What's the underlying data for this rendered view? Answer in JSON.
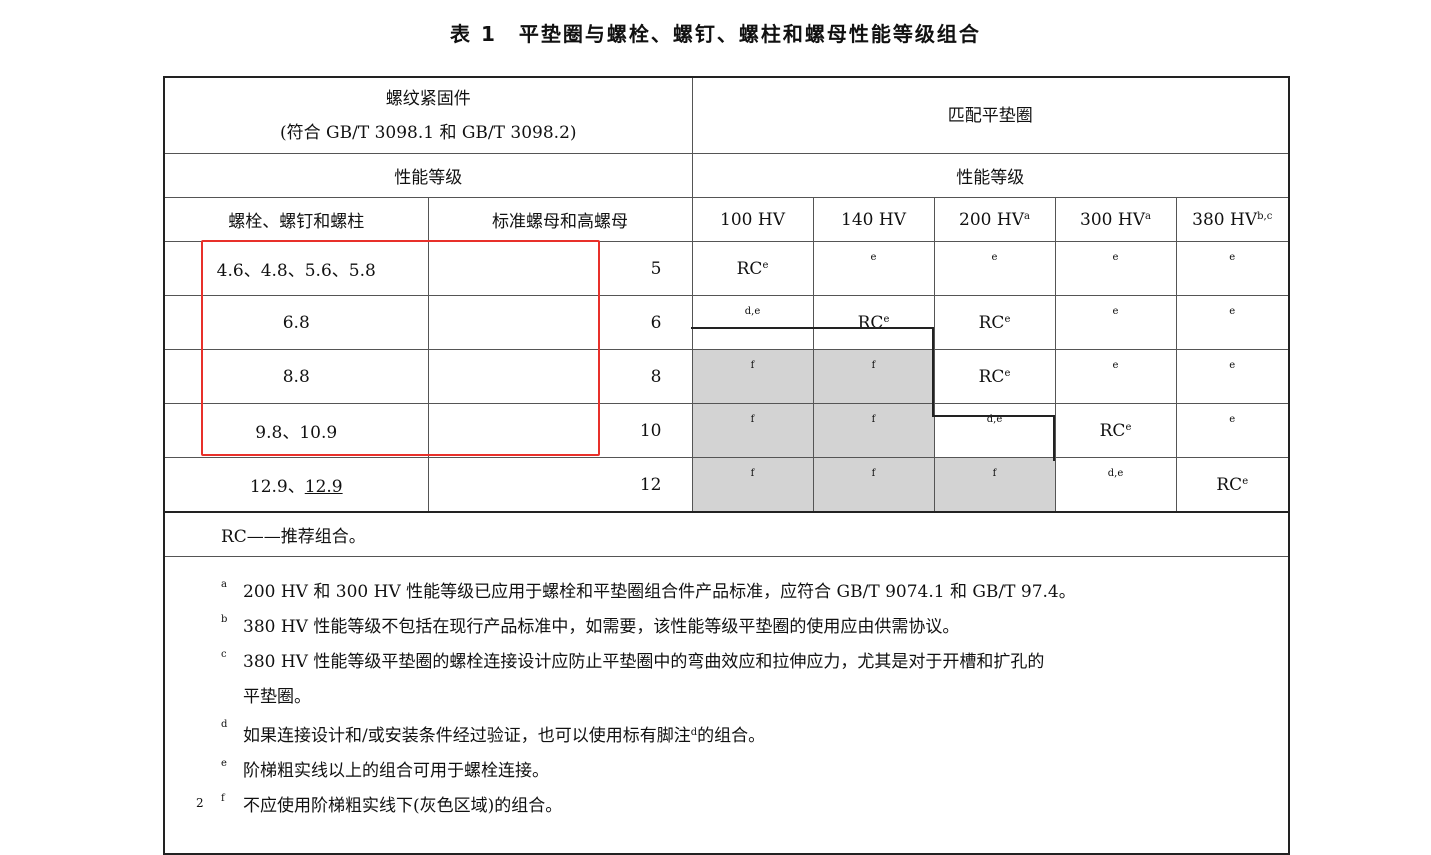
{
  "title": "表 1　平垫圈与螺栓、螺钉、螺柱和螺母性能等级组合",
  "header": {
    "fasteners": "螺纹紧固件",
    "fasteners_std": "(符合 GB/T 3098.1 和 GB/T 3098.2)",
    "washers": "匹配平垫圈",
    "grade_left": "性能等级",
    "grade_right": "性能等级",
    "bolts": "螺栓、螺钉和螺柱",
    "nuts": "标准螺母和高螺母",
    "cols": [
      {
        "label": "100 HV",
        "sup": ""
      },
      {
        "label": "140 HV",
        "sup": ""
      },
      {
        "label": "200 HV",
        "sup": "a"
      },
      {
        "label": "300 HV",
        "sup": "a"
      },
      {
        "label": "380 HV",
        "sup": "b,c"
      }
    ]
  },
  "rows": [
    {
      "bolt": "4.6、4.8、5.6、5.8",
      "nut": "5",
      "cells": [
        {
          "rc": "RC",
          "sup": "e"
        },
        {
          "rc": "",
          "sup": "e"
        },
        {
          "rc": "",
          "sup": "e"
        },
        {
          "rc": "",
          "sup": "e"
        },
        {
          "rc": "",
          "sup": "e"
        }
      ]
    },
    {
      "bolt": "6.8",
      "nut": "6",
      "cells": [
        {
          "rc": "",
          "sup": "d,e"
        },
        {
          "rc": "RC",
          "sup": "e"
        },
        {
          "rc": "RC",
          "sup": "e"
        },
        {
          "rc": "",
          "sup": "e"
        },
        {
          "rc": "",
          "sup": "e"
        }
      ]
    },
    {
      "bolt": "8.8",
      "nut": "8",
      "cells": [
        {
          "rc": "",
          "sup": "f"
        },
        {
          "rc": "",
          "sup": "f"
        },
        {
          "rc": "RC",
          "sup": "e"
        },
        {
          "rc": "",
          "sup": "e"
        },
        {
          "rc": "",
          "sup": "e"
        }
      ]
    },
    {
      "bolt": "9.8、10.9",
      "nut": "10",
      "cells": [
        {
          "rc": "",
          "sup": "f"
        },
        {
          "rc": "",
          "sup": "f"
        },
        {
          "rc": "",
          "sup": "d,e"
        },
        {
          "rc": "RC",
          "sup": "e"
        },
        {
          "rc": "",
          "sup": "e"
        }
      ]
    },
    {
      "bolt_a": "12.9、",
      "bolt_b": "12.9",
      "nut": "12",
      "cells": [
        {
          "rc": "",
          "sup": "f"
        },
        {
          "rc": "",
          "sup": "f"
        },
        {
          "rc": "",
          "sup": "f"
        },
        {
          "rc": "",
          "sup": "d,e"
        },
        {
          "rc": "RC",
          "sup": "e"
        }
      ]
    }
  ],
  "rc_note": "RC——推荐组合。",
  "notes": [
    {
      "mark": "a",
      "text": "200 HV 和 300 HV 性能等级已应用于螺栓和平垫圈组合件产品标准，应符合 GB/T 9074.1 和 GB/T 97.4。"
    },
    {
      "mark": "b",
      "text": "380 HV 性能等级不包括在现行产品标准中，如需要，该性能等级平垫圈的使用应由供需协议。"
    },
    {
      "mark": "c",
      "text": "380 HV 性能等级平垫圈的螺栓连接设计应防止平垫圈中的弯曲效应和拉伸应力，尤其是对于开槽和扩孔的",
      "cont": "平垫圈。"
    },
    {
      "mark": "d",
      "text": "如果连接设计和/或安装条件经过验证，也可以使用标有脚注",
      "inline_sup": "d",
      "text2": "的组合。"
    },
    {
      "mark": "e",
      "text": "阶梯粗实线以上的组合可用于螺栓连接。"
    },
    {
      "mark": "f",
      "text": "不应使用阶梯粗实线下(灰色区域)的组合。"
    }
  ],
  "page_number": "2",
  "colors": {
    "gray_region": "#d3d3d3",
    "highlight_box": "#e8302a"
  }
}
